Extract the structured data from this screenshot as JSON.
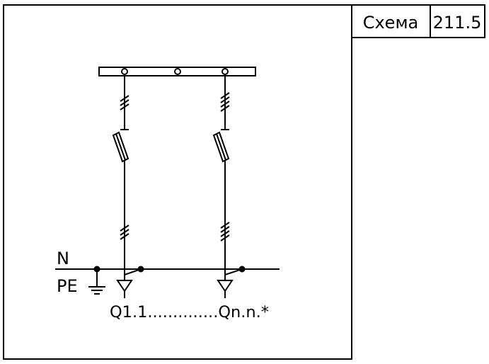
{
  "title_block": {
    "label": "Схема",
    "number": "211.5"
  },
  "diagram": {
    "labels": {
      "neutral": "N",
      "protective_earth": "PE",
      "outputs": "Q1.1..............Qn.n.*"
    },
    "colors": {
      "stroke": "#000000",
      "background": "#ffffff"
    }
  }
}
